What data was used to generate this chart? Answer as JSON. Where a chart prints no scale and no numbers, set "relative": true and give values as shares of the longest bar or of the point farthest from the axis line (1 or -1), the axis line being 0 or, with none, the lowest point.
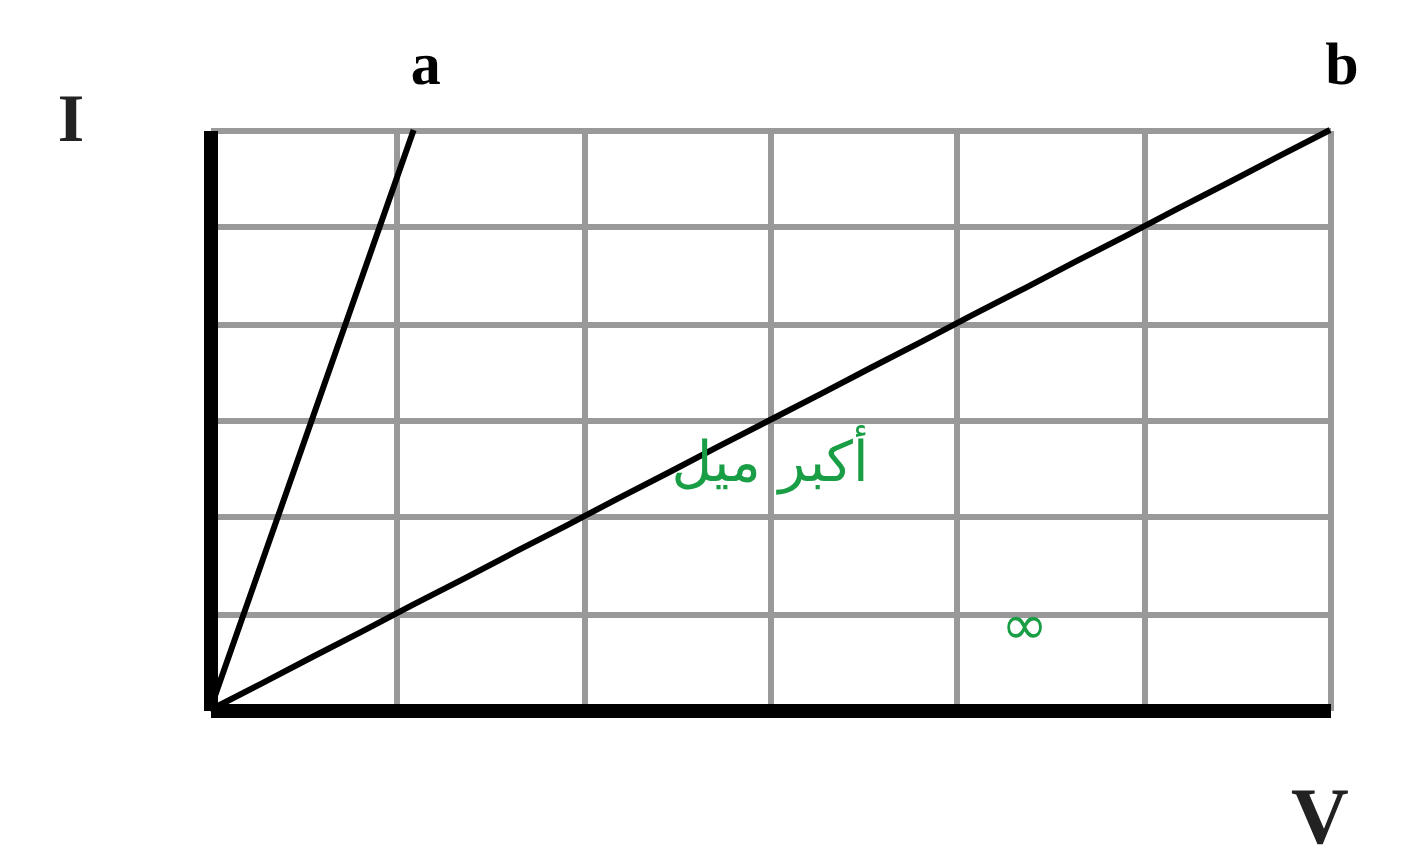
{
  "chart_data": {
    "type": "line",
    "relative": true,
    "xlabel": "V",
    "ylabel": "I",
    "grid": true,
    "legend": false,
    "marker": "none",
    "line_style": "solid",
    "annotations": [
      "أكبر ميل",
      "∞"
    ],
    "categories": [
      null,
      null,
      null,
      null,
      null,
      null,
      null,
      null,
      null,
      null,
      null,
      null,
      null,
      null,
      null,
      null,
      null,
      null,
      null,
      null,
      null,
      null,
      null
    ],
    "series": [
      {
        "name": "a",
        "color": "#000000",
        "values": [
          0,
          0.25,
          0.5,
          0.75,
          1,
          null,
          null,
          null,
          null,
          null,
          null,
          null,
          null,
          null,
          null,
          null,
          null,
          null,
          null,
          null,
          null,
          null,
          null
        ]
      },
      {
        "name": "b",
        "color": "#000000",
        "values": [
          0,
          0.045,
          0.091,
          0.136,
          0.182,
          0.227,
          0.273,
          0.318,
          0.364,
          0.409,
          0.455,
          0.5,
          0.545,
          0.591,
          0.636,
          0.682,
          0.727,
          0.773,
          0.818,
          0.864,
          0.909,
          0.955,
          1
        ]
      }
    ]
  }
}
